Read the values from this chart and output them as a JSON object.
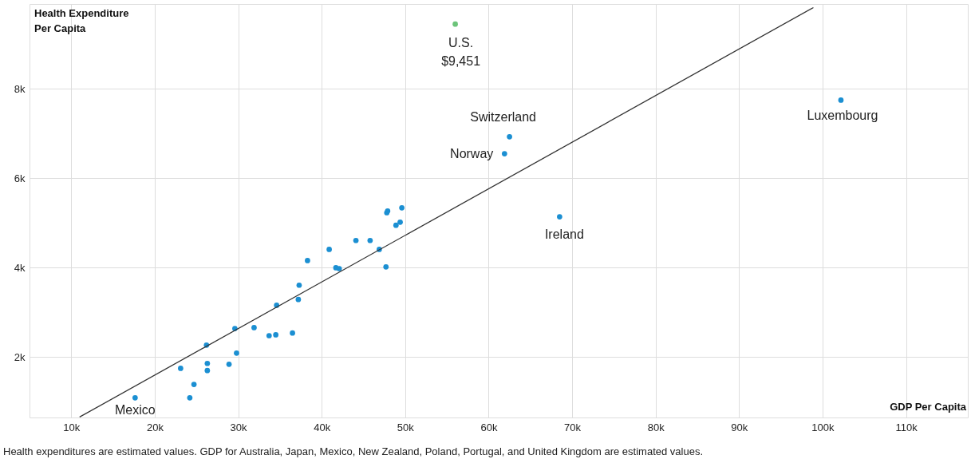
{
  "chart_data": {
    "type": "scatter",
    "ylabel": "Health Expenditure Per Capita",
    "xlabel": "GDP Per Capita",
    "series": [
      {
        "marker": "circle",
        "x": [
          17650,
          24200,
          24700,
          23100,
          26300,
          26300,
          28900,
          29800,
          26200,
          29600,
          31900,
          33700,
          34500,
          36500,
          34600,
          37200,
          37300,
          38300,
          41700,
          42100,
          40900,
          44100,
          45800,
          46900,
          47700,
          47800,
          47900,
          48900,
          49400,
          49600,
          62500,
          61900,
          68500,
          102200,
          56000
        ],
        "values": [
          1090,
          1090,
          1390,
          1750,
          1700,
          1860,
          1840,
          2090,
          2270,
          2640,
          2660,
          2480,
          2500,
          2540,
          3160,
          3290,
          3610,
          4160,
          4000,
          3980,
          4410,
          4610,
          4610,
          4410,
          4020,
          5230,
          5270,
          4950,
          5020,
          5340,
          6930,
          6550,
          5140,
          7750,
          9451
        ],
        "colors": [
          "#1b8fd2",
          "#1b8fd2",
          "#1b8fd2",
          "#1b8fd2",
          "#1b8fd2",
          "#1b8fd2",
          "#1b8fd2",
          "#1b8fd2",
          "#1b8fd2",
          "#1b8fd2",
          "#1b8fd2",
          "#1b8fd2",
          "#1b8fd2",
          "#1b8fd2",
          "#1b8fd2",
          "#1b8fd2",
          "#1b8fd2",
          "#1b8fd2",
          "#1b8fd2",
          "#1b8fd2",
          "#1b8fd2",
          "#1b8fd2",
          "#1b8fd2",
          "#1b8fd2",
          "#1b8fd2",
          "#1b8fd2",
          "#1b8fd2",
          "#1b8fd2",
          "#1b8fd2",
          "#1b8fd2",
          "#1b8fd2",
          "#1b8fd2",
          "#1b8fd2",
          "#1b8fd2",
          "#6cc47a"
        ]
      },
      {
        "type": "line",
        "marker": "none",
        "color": "#333333",
        "x": [
          11000,
          98900
        ],
        "values": [
          660,
          9820
        ]
      }
    ],
    "xlim": [
      5000,
      117400
    ],
    "ylim": [
      650,
      9900
    ],
    "xticks": [
      {
        "value": 10000,
        "label": "10k"
      },
      {
        "value": 20000,
        "label": "20k"
      },
      {
        "value": 30000,
        "label": "30k"
      },
      {
        "value": 40000,
        "label": "40k"
      },
      {
        "value": 50000,
        "label": "50k"
      },
      {
        "value": 60000,
        "label": "60k"
      },
      {
        "value": 70000,
        "label": "70k"
      },
      {
        "value": 80000,
        "label": "80k"
      },
      {
        "value": 90000,
        "label": "90k"
      },
      {
        "value": 100000,
        "label": "100k"
      },
      {
        "value": 110000,
        "label": "110k"
      }
    ],
    "yticks": [
      {
        "value": 2000,
        "label": "2k"
      },
      {
        "value": 4000,
        "label": "4k"
      },
      {
        "value": 6000,
        "label": "6k"
      },
      {
        "value": 8000,
        "label": "8k"
      }
    ],
    "grid": true,
    "line_style": "solid",
    "annotations": [
      {
        "text": "Mexico",
        "x": 17650,
        "y": 1090
      },
      {
        "text": "U.S. $9,451",
        "x": 56000,
        "y": 9451
      },
      {
        "text": "Switzerland",
        "x": 62500,
        "y": 6930
      },
      {
        "text": "Norway",
        "x": 61900,
        "y": 6550
      },
      {
        "text": "Ireland",
        "x": 68500,
        "y": 5140
      },
      {
        "text": "Luxembourg",
        "x": 102200,
        "y": 7750
      },
      "Health expenditures are estimated values. GDP for Australia, Japan, Mexico, New Zealand, Poland, Portugal, and United Kingdom are estimated values."
    ]
  }
}
